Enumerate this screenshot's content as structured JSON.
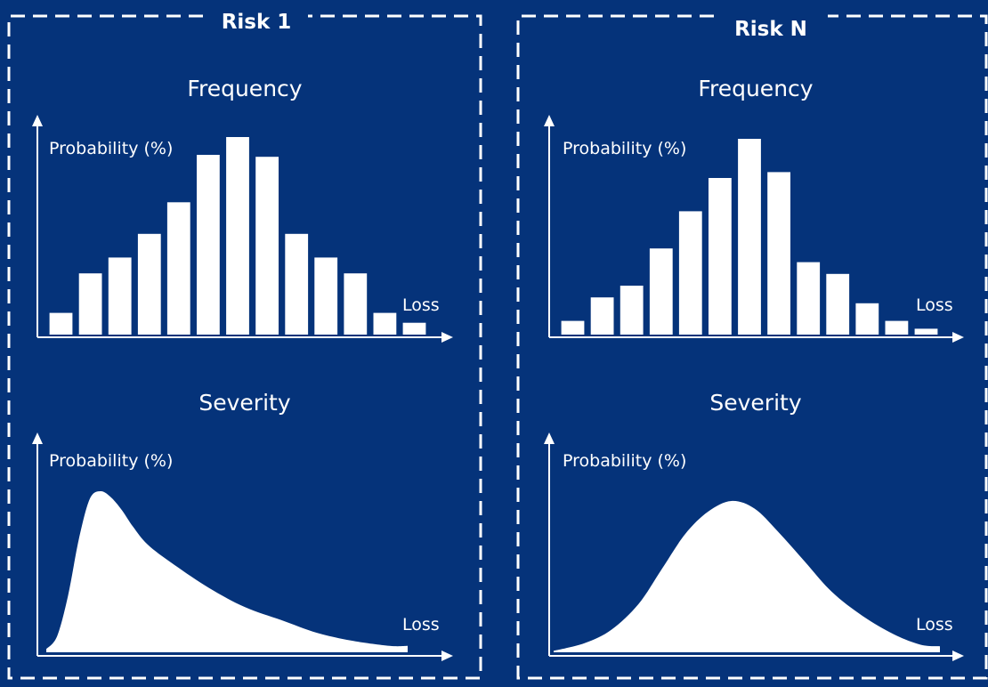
{
  "colors": {
    "background": "#05337a",
    "foreground": "#ffffff"
  },
  "panels": [
    {
      "title": "Risk 1",
      "frequency": {
        "title": "Frequency",
        "ylabel": "Probability (%)",
        "xlabel": "Loss"
      },
      "severity": {
        "title": "Severity",
        "ylabel": "Probability (%)",
        "xlabel": "Loss"
      }
    },
    {
      "title": "Risk N",
      "frequency": {
        "title": "Frequency",
        "ylabel": "Probability (%)",
        "xlabel": "Loss"
      },
      "severity": {
        "title": "Severity",
        "ylabel": "Probability (%)",
        "xlabel": "Loss"
      }
    }
  ],
  "chart_data": [
    {
      "type": "bar",
      "title": "Frequency",
      "ylabel": "Probability (%)",
      "xlabel": "Loss",
      "values": [
        11,
        31,
        39,
        51,
        67,
        91,
        100,
        90,
        51,
        39,
        31,
        11,
        6
      ],
      "ylim": [
        0,
        100
      ],
      "grid": false,
      "axes": "arrows, no tick labels"
    },
    {
      "type": "area",
      "title": "Severity",
      "ylabel": "Probability (%)",
      "xlabel": "Loss",
      "x": [
        0,
        3,
        6,
        9,
        12,
        15,
        18,
        21,
        24,
        28,
        35,
        45,
        55,
        65,
        75,
        85,
        95,
        100
      ],
      "y": [
        2,
        10,
        35,
        70,
        95,
        100,
        96,
        88,
        78,
        67,
        55,
        40,
        28,
        20,
        12,
        7,
        4,
        4
      ],
      "ylim": [
        0,
        100
      ],
      "grid": false,
      "axes": "arrows, no tick labels"
    },
    {
      "type": "bar",
      "title": "Frequency",
      "ylabel": "Probability (%)",
      "xlabel": "Loss",
      "values": [
        7,
        19,
        25,
        44,
        63,
        80,
        100,
        83,
        37,
        31,
        16,
        7,
        3
      ],
      "ylim": [
        0,
        100
      ],
      "grid": false,
      "axes": "arrows, no tick labels"
    },
    {
      "type": "area",
      "title": "Severity",
      "ylabel": "Probability (%)",
      "xlabel": "Loss",
      "x": [
        0,
        8,
        15,
        22,
        28,
        34,
        40,
        46,
        52,
        58,
        65,
        72,
        80,
        88,
        95,
        100
      ],
      "y": [
        1,
        6,
        15,
        32,
        55,
        78,
        93,
        100,
        95,
        80,
        60,
        40,
        24,
        12,
        5,
        4
      ],
      "ylim": [
        0,
        100
      ],
      "grid": false,
      "axes": "arrows, no tick labels"
    }
  ]
}
